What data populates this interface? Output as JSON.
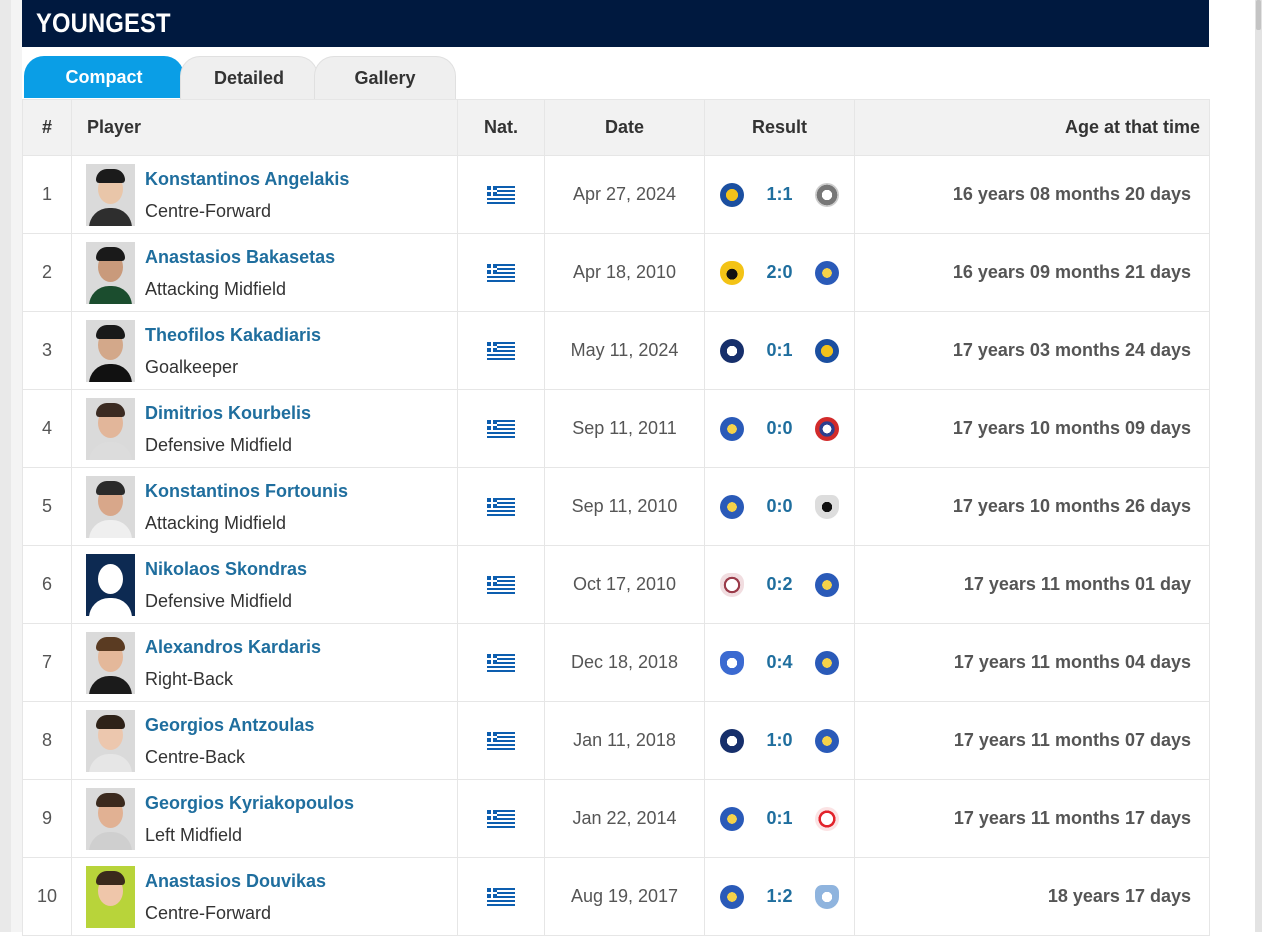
{
  "title": "YOUNGEST",
  "tabs": [
    {
      "label": "Compact",
      "active": true
    },
    {
      "label": "Detailed",
      "active": false
    },
    {
      "label": "Gallery",
      "active": false
    }
  ],
  "columns": [
    "#",
    "Player",
    "Nat.",
    "Date",
    "Result",
    "Age at that time"
  ],
  "rows": [
    {
      "num": "1",
      "name": "Konstantinos Angelakis",
      "position": "Centre-Forward",
      "date": "Apr 27, 2024",
      "score": "1:1",
      "age": "16 years 08 months 20 days",
      "home_crest": "crest-blue-yellow-icon",
      "away_crest": "crest-grey-icon"
    },
    {
      "num": "2",
      "name": "Anastasios Bakasetas",
      "position": "Attacking Midfield",
      "date": "Apr 18, 2010",
      "score": "2:0",
      "age": "16 years 09 months 21 days",
      "home_crest": "crest-yellow-black-icon",
      "away_crest": "crest-blue-star-icon"
    },
    {
      "num": "3",
      "name": "Theofilos Kakadiaris",
      "position": "Goalkeeper",
      "date": "May 11, 2024",
      "score": "0:1",
      "age": "17 years 03 months 24 days",
      "home_crest": "crest-navy-star-icon",
      "away_crest": "crest-blue-yellow-icon"
    },
    {
      "num": "4",
      "name": "Dimitrios Kourbelis",
      "position": "Defensive Midfield",
      "date": "Sep 11, 2011",
      "score": "0:0",
      "age": "17 years 10 months 09 days",
      "home_crest": "crest-blue-star-icon",
      "away_crest": "crest-red-blue-icon"
    },
    {
      "num": "5",
      "name": "Konstantinos Fortounis",
      "position": "Attacking Midfield",
      "date": "Sep 11, 2010",
      "score": "0:0",
      "age": "17 years 10 months 26 days",
      "home_crest": "crest-blue-star-icon",
      "away_crest": "crest-black-white-icon"
    },
    {
      "num": "6",
      "name": "Nikolaos Skondras",
      "position": "Defensive Midfield",
      "date": "Oct 17, 2010",
      "score": "0:2",
      "age": "17 years 11 months 01 day",
      "home_crest": "crest-maroon-icon",
      "away_crest": "crest-blue-star-icon"
    },
    {
      "num": "7",
      "name": "Alexandros Kardaris",
      "position": "Right-Back",
      "date": "Dec 18, 2018",
      "score": "0:4",
      "age": "17 years 11 months 04 days",
      "home_crest": "crest-blue-white-icon",
      "away_crest": "crest-blue-star-icon"
    },
    {
      "num": "8",
      "name": "Georgios Antzoulas",
      "position": "Centre-Back",
      "date": "Jan 11, 2018",
      "score": "1:0",
      "age": "17 years 11 months 07 days",
      "home_crest": "crest-navy-star-icon",
      "away_crest": "crest-blue-star-icon"
    },
    {
      "num": "9",
      "name": "Georgios Kyriakopoulos",
      "position": "Left Midfield",
      "date": "Jan 22, 2014",
      "score": "0:1",
      "age": "17 years 11 months 17 days",
      "home_crest": "crest-blue-star-icon",
      "away_crest": "crest-red-white-icon"
    },
    {
      "num": "10",
      "name": "Anastasios Douvikas",
      "position": "Centre-Forward",
      "date": "Aug 19, 2017",
      "score": "1:2",
      "age": "18 years 17 days",
      "home_crest": "crest-blue-star-icon",
      "away_crest": "crest-lightblue-icon"
    }
  ],
  "colors": {
    "header_bg": "#00193f",
    "tab_active": "#0a9ee6",
    "link": "#1f6e9e",
    "flag_blue": "#0d5eaf"
  }
}
